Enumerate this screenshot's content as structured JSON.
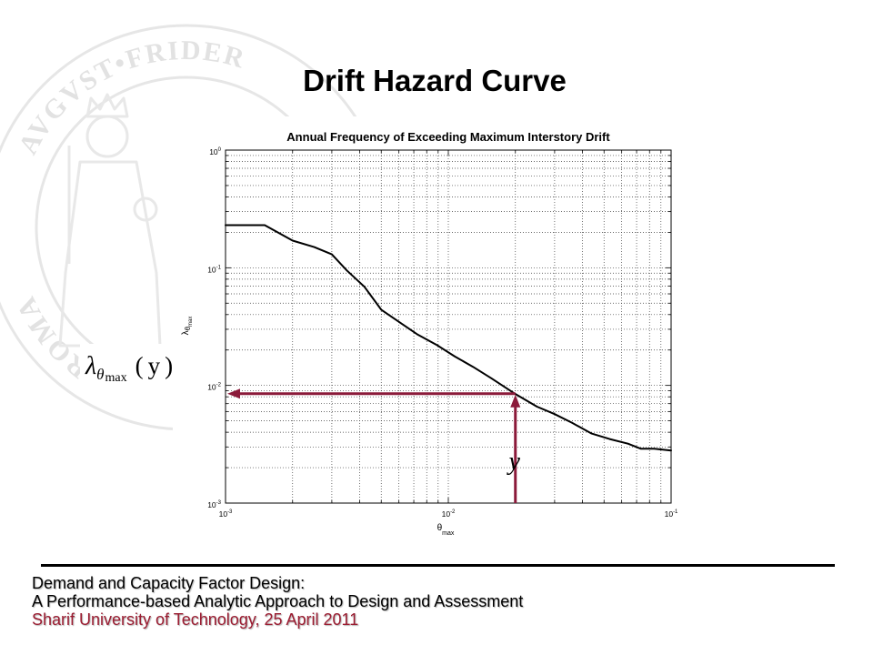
{
  "slide": {
    "title": "Drift Hazard Curve",
    "footer": {
      "line1": "Demand and Capacity Factor Design:",
      "line2": "A Performance-based Analytic Approach to Design and Assessment",
      "line3": "Sharif University of Technology, 25 April 2011"
    },
    "colors": {
      "background": "#ffffff",
      "text": "#000000",
      "footer_accent": "#9b1c31",
      "watermark": "#e2e2e2"
    }
  },
  "watermark": {
    "top_text": "AVGVST•FRIDER",
    "left_text": "ROMA"
  },
  "annotations": {
    "hazard_label": {
      "symbol": "λ",
      "sub": "θ",
      "subsub": "max",
      "arg": "(y)"
    },
    "drift_label": "y"
  },
  "chart_data": {
    "type": "line",
    "title": "Annual Frequency of Exceeding Maximum Interstory Drift",
    "xlabel": {
      "symbol": "θ",
      "sub": "max"
    },
    "ylabel": {
      "symbol": "λ",
      "sub": "θ",
      "subsub": "max"
    },
    "xscale": "log",
    "yscale": "log",
    "xlim": [
      0.001,
      0.1
    ],
    "ylim": [
      0.001,
      1
    ],
    "grid": true,
    "x_ticks": [
      {
        "value": 0.001,
        "base": "10",
        "exp": "-3"
      },
      {
        "value": 0.01,
        "base": "10",
        "exp": "-2"
      },
      {
        "value": 0.1,
        "base": "10",
        "exp": "-1"
      }
    ],
    "y_ticks": [
      {
        "value": 0.001,
        "base": "10",
        "exp": "-3"
      },
      {
        "value": 0.01,
        "base": "10",
        "exp": "-2"
      },
      {
        "value": 0.1,
        "base": "10",
        "exp": "-1"
      },
      {
        "value": 1,
        "base": "10",
        "exp": "0"
      }
    ],
    "series": [
      {
        "color": "#000000",
        "x": [
          0.001,
          0.0015,
          0.002,
          0.0025,
          0.003,
          0.0035,
          0.0042,
          0.005,
          0.0061,
          0.0073,
          0.0089,
          0.0107,
          0.0129,
          0.0156,
          0.0197,
          0.025,
          0.03,
          0.036,
          0.044,
          0.053,
          0.064,
          0.073,
          0.084,
          0.1
        ],
        "y": [
          0.23,
          0.23,
          0.17,
          0.15,
          0.13,
          0.095,
          0.069,
          0.044,
          0.034,
          0.027,
          0.022,
          0.0176,
          0.0144,
          0.0115,
          0.0086,
          0.0066,
          0.0057,
          0.0048,
          0.0039,
          0.0035,
          0.0032,
          0.0029,
          0.0029,
          0.0028
        ]
      }
    ],
    "reading": {
      "x": 0.02,
      "y": 0.0085,
      "color": "#8b1a3a"
    }
  }
}
